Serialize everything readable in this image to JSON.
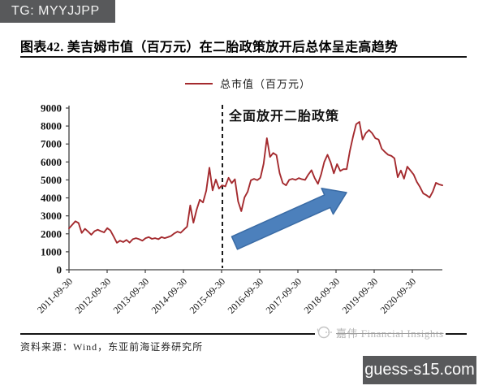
{
  "badge": {
    "text": "TG: MYYJJPP"
  },
  "figure": {
    "title": "图表42. 美吉姆市值（百万元）在二胎政策放开后总体呈走高趋势"
  },
  "legend": {
    "label": "总市值（百万元）"
  },
  "annotation": {
    "text": "全面放开二胎政策"
  },
  "footer": {
    "source": "资料来源：Wind，东亚前海证券研究所",
    "watermark": "嘉伟 Financial Insights",
    "site_badge": "guess-s15.com"
  },
  "colors": {
    "series_red": "#a42a2e",
    "arrow_fill": "#4c80bc",
    "arrow_stroke": "#3a6ba5",
    "axis": "#404040",
    "badge_bg": "#58595b",
    "event_line": "#1a1a1a"
  },
  "chart_data": {
    "type": "line",
    "title": "美吉姆市值（百万元）在二胎政策放开后总体呈走高趋势",
    "xlabel": "",
    "ylabel": "",
    "ylim": [
      0,
      9000
    ],
    "y_ticks": [
      0,
      1000,
      2000,
      3000,
      4000,
      5000,
      6000,
      7000,
      8000,
      9000
    ],
    "x_tick_labels": [
      "2011-09-30",
      "2012-09-30",
      "2013-09-30",
      "2014-09-30",
      "2015-09-30",
      "2016-09-30",
      "2017-09-30",
      "2018-09-30",
      "2019-09-30",
      "2020-09-30"
    ],
    "x_start": "2011-09-30",
    "x_interval": "monthly",
    "grid": false,
    "legend_position": "top-center",
    "event_marker": {
      "label": "全面放开二胎政策",
      "at_tick_index": 4,
      "style": "dashed-vertical"
    },
    "arrow_annotation": {
      "meaning": "upward trend after policy",
      "from": [
        289,
        299
      ],
      "to": [
        427,
        237
      ]
    },
    "series": [
      {
        "name": "总市值（百万元）",
        "color": "#a42a2e",
        "values": [
          2300,
          2500,
          2700,
          2600,
          2050,
          2280,
          2120,
          1950,
          2150,
          2230,
          2150,
          2080,
          2320,
          2180,
          1850,
          1500,
          1620,
          1540,
          1660,
          1510,
          1700,
          1760,
          1700,
          1620,
          1760,
          1820,
          1720,
          1760,
          1700,
          1820,
          1760,
          1820,
          1880,
          2020,
          2120,
          2060,
          2230,
          2400,
          3580,
          2620,
          3350,
          3900,
          3750,
          4400,
          5680,
          4420,
          5020,
          4520,
          4700,
          4640,
          5120,
          4820,
          5040,
          3800,
          3260,
          4020,
          4350,
          4980,
          5060,
          4990,
          5120,
          5900,
          7320,
          6280,
          6500,
          6380,
          5380,
          4820,
          4700,
          5000,
          5060,
          5000,
          5100,
          5040,
          5000,
          5300,
          5540,
          5100,
          4780,
          5300,
          6000,
          6400,
          5970,
          5370,
          5880,
          5500,
          5600,
          5600,
          6600,
          7400,
          8100,
          8230,
          7250,
          7600,
          7780,
          7600,
          7320,
          7250,
          6740,
          6560,
          6400,
          6340,
          6200,
          5150,
          5520,
          5070,
          5740,
          5520,
          5300,
          4900,
          4600,
          4250,
          4150,
          4020,
          4350,
          4840,
          4750,
          4700
        ]
      }
    ]
  }
}
